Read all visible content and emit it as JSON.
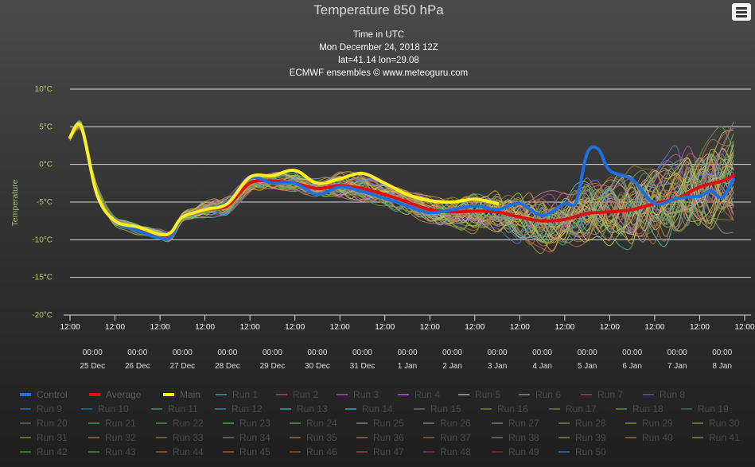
{
  "chart_data": {
    "type": "line",
    "title": "Temperature 850 hPa",
    "subtitle": [
      "Time in UTC",
      "Mon December 24, 2018 12Z",
      "lat=41.14 lon=29.08",
      "ECMWF ensembles © www.meteoguru.com"
    ],
    "ylabel": "Temperature",
    "ylim": [
      -20,
      10
    ],
    "yticks": [
      "10°C",
      "5°C",
      "0°C",
      "-5°C",
      "-10°C",
      "-15°C",
      "-20°C"
    ],
    "xticks": [
      "12:00",
      "12:00",
      "12:00",
      "12:00",
      "12:00",
      "12:00",
      "12:00",
      "12:00",
      "12:00",
      "12:00",
      "12:00",
      "12:00",
      "12:00",
      "12:00",
      "12:00",
      "12:00",
      "12:00"
    ],
    "day_ticks": [
      {
        "time": "00:00",
        "date": "25 Dec"
      },
      {
        "time": "00:00",
        "date": "26 Dec"
      },
      {
        "time": "00:00",
        "date": "27 Dec"
      },
      {
        "time": "00:00",
        "date": "28 Dec"
      },
      {
        "time": "00:00",
        "date": "29 Dec"
      },
      {
        "time": "00:00",
        "date": "30 Dec"
      },
      {
        "time": "00:00",
        "date": "31 Dec"
      },
      {
        "time": "00:00",
        "date": "1 Jan"
      },
      {
        "time": "00:00",
        "date": "2 Jan"
      },
      {
        "time": "00:00",
        "date": "3 Jan"
      },
      {
        "time": "00:00",
        "date": "4 Jan"
      },
      {
        "time": "00:00",
        "date": "5 Jan"
      },
      {
        "time": "00:00",
        "date": "6 Jan"
      },
      {
        "time": "00:00",
        "date": "7 Jan"
      },
      {
        "time": "00:00",
        "date": "8 Jan"
      }
    ],
    "x_days": [
      0,
      15
    ],
    "grid": true,
    "legend_position": "bottom",
    "series": [
      {
        "name": "Control",
        "color": "#1e6fe0",
        "points": [
          [
            0,
            3.6
          ],
          [
            0.25,
            5
          ],
          [
            0.6,
            -4
          ],
          [
            1,
            -7.5
          ],
          [
            1.5,
            -8.8
          ],
          [
            2,
            -9.8
          ],
          [
            2.25,
            -9.6
          ],
          [
            2.5,
            -7
          ],
          [
            3,
            -6
          ],
          [
            3.5,
            -5
          ],
          [
            4,
            -1.8
          ],
          [
            4.5,
            -2.5
          ],
          [
            5,
            -2.5
          ],
          [
            5.5,
            -4
          ],
          [
            6,
            -3
          ],
          [
            6.5,
            -3.6
          ],
          [
            7,
            -4.5
          ],
          [
            7.5,
            -5.5
          ],
          [
            8,
            -6.4
          ],
          [
            8.5,
            -6
          ],
          [
            9,
            -5.5
          ],
          [
            9.5,
            -6
          ],
          [
            10,
            -5.2
          ],
          [
            10.5,
            -6.8
          ],
          [
            11,
            -5.2
          ],
          [
            11.25,
            -5
          ],
          [
            11.5,
            1.5
          ],
          [
            11.75,
            2
          ],
          [
            12,
            -0.8
          ],
          [
            12.5,
            -2
          ],
          [
            13,
            -5.2
          ],
          [
            13.5,
            -4.5
          ],
          [
            14,
            -4.2
          ],
          [
            14.25,
            -3.5
          ],
          [
            14.5,
            -4.4
          ],
          [
            14.75,
            -2
          ]
        ]
      },
      {
        "name": "Average",
        "color": "#e01010",
        "points": [
          [
            0,
            3.6
          ],
          [
            0.25,
            5
          ],
          [
            0.6,
            -4
          ],
          [
            1,
            -7.5
          ],
          [
            1.5,
            -8.6
          ],
          [
            2,
            -9.3
          ],
          [
            2.25,
            -9.5
          ],
          [
            2.5,
            -7
          ],
          [
            3,
            -6
          ],
          [
            3.5,
            -5.5
          ],
          [
            4,
            -2.5
          ],
          [
            4.5,
            -2.2
          ],
          [
            5,
            -2.5
          ],
          [
            5.5,
            -3.2
          ],
          [
            6,
            -2.8
          ],
          [
            6.5,
            -3.2
          ],
          [
            7,
            -4
          ],
          [
            7.5,
            -5
          ],
          [
            8,
            -6
          ],
          [
            8.5,
            -6.3
          ],
          [
            9,
            -6.2
          ],
          [
            9.5,
            -6.3
          ],
          [
            10,
            -7
          ],
          [
            10.5,
            -7.5
          ],
          [
            11,
            -7.3
          ],
          [
            11.5,
            -6.5
          ],
          [
            12,
            -6.3
          ],
          [
            12.5,
            -6
          ],
          [
            13,
            -5.2
          ],
          [
            13.5,
            -4.5
          ],
          [
            14,
            -3
          ],
          [
            14.5,
            -2.2
          ],
          [
            14.75,
            -1.5
          ]
        ]
      },
      {
        "name": "Main",
        "color": "#ffee20",
        "points": [
          [
            0,
            3.6
          ],
          [
            0.25,
            5
          ],
          [
            0.6,
            -4
          ],
          [
            1,
            -7.5
          ],
          [
            1.5,
            -8.3
          ],
          [
            2,
            -9.3
          ],
          [
            2.25,
            -9
          ],
          [
            2.5,
            -7
          ],
          [
            3,
            -6
          ],
          [
            3.5,
            -5.2
          ],
          [
            4,
            -1.7
          ],
          [
            4.5,
            -1.5
          ],
          [
            5,
            -0.8
          ],
          [
            5.5,
            -2.5
          ],
          [
            6,
            -1.9
          ],
          [
            6.5,
            -1.2
          ],
          [
            7,
            -2.5
          ],
          [
            7.5,
            -4
          ],
          [
            8,
            -4.8
          ],
          [
            8.5,
            -5
          ],
          [
            9,
            -4.6
          ],
          [
            9.5,
            -5.2
          ]
        ]
      },
      {
        "name": "Run 1",
        "color": "#3a7a86"
      },
      {
        "name": "Run 2",
        "color": "#8a3a5a"
      },
      {
        "name": "Run 3",
        "color": "#9a3a9a"
      },
      {
        "name": "Run 4",
        "color": "#9a48b0"
      },
      {
        "name": "Run 5",
        "color": "#8a8a8a"
      },
      {
        "name": "Run 6",
        "color": "#7a6a70"
      },
      {
        "name": "Run 7",
        "color": "#7a3a40"
      },
      {
        "name": "Run 8",
        "color": "#4a4a8a"
      },
      {
        "name": "Run 9",
        "color": "#2a5a8a"
      },
      {
        "name": "Run 10",
        "color": "#2a5a7a"
      },
      {
        "name": "Run 11",
        "color": "#2a7a6a"
      },
      {
        "name": "Run 12",
        "color": "#3a6a7a"
      },
      {
        "name": "Run 13",
        "color": "#2a8a7a"
      },
      {
        "name": "Run 14",
        "color": "#2a8a9a"
      },
      {
        "name": "Run 15",
        "color": "#5a5a5a"
      },
      {
        "name": "Run 16",
        "color": "#5a6a2a"
      },
      {
        "name": "Run 17",
        "color": "#5a6a2a"
      },
      {
        "name": "Run 18",
        "color": "#4a7a2a"
      },
      {
        "name": "Run 19",
        "color": "#3a5a4a"
      },
      {
        "name": "Run 20",
        "color": "#3a6a3a"
      },
      {
        "name": "Run 21",
        "color": "#3a7a4a"
      },
      {
        "name": "Run 22",
        "color": "#3a7a3a"
      },
      {
        "name": "Run 23",
        "color": "#3a8a3a"
      },
      {
        "name": "Run 24",
        "color": "#3a8a2a"
      },
      {
        "name": "Run 25",
        "color": "#6a6a6a"
      },
      {
        "name": "Run 26",
        "color": "#6a6a5a"
      },
      {
        "name": "Run 27",
        "color": "#6a6a4a"
      },
      {
        "name": "Run 28",
        "color": "#6a6a3a"
      },
      {
        "name": "Run 29",
        "color": "#7a6a3a"
      },
      {
        "name": "Run 30",
        "color": "#7a6a2a"
      },
      {
        "name": "Run 31",
        "color": "#6a6a2a"
      },
      {
        "name": "Run 32",
        "color": "#7a5a3a"
      },
      {
        "name": "Run 33",
        "color": "#6a5a3a"
      },
      {
        "name": "Run 34",
        "color": "#6a5a4a"
      },
      {
        "name": "Run 35",
        "color": "#7a5a3a"
      },
      {
        "name": "Run 36",
        "color": "#7a5a4a"
      },
      {
        "name": "Run 37",
        "color": "#7a4a3a"
      },
      {
        "name": "Run 38",
        "color": "#6a5a4a"
      },
      {
        "name": "Run 39",
        "color": "#6a6a4a"
      },
      {
        "name": "Run 40",
        "color": "#7a5a3a"
      },
      {
        "name": "Run 41",
        "color": "#6a6a3a"
      },
      {
        "name": "Run 42",
        "color": "#4a6a2a"
      },
      {
        "name": "Run 43",
        "color": "#4a6a3a"
      },
      {
        "name": "Run 44",
        "color": "#7a4a2a"
      },
      {
        "name": "Run 45",
        "color": "#7a4a3a"
      },
      {
        "name": "Run 46",
        "color": "#7a3a2a"
      },
      {
        "name": "Run 47",
        "color": "#7a3a3a"
      },
      {
        "name": "Run 48",
        "color": "#6a2a4a"
      },
      {
        "name": "Run 49",
        "color": "#5a2a2a"
      },
      {
        "name": "Run 50",
        "color": "#2a5a8a"
      }
    ],
    "ensemble_colors": [
      "#d0a050",
      "#70a040",
      "#e06060",
      "#60c0c0",
      "#a0a040",
      "#c07030",
      "#80c060",
      "#d0d060",
      "#c08080",
      "#6080d0",
      "#b060b0",
      "#e0b040",
      "#90a0a0",
      "#c0c040",
      "#a07050",
      "#50b080"
    ]
  }
}
